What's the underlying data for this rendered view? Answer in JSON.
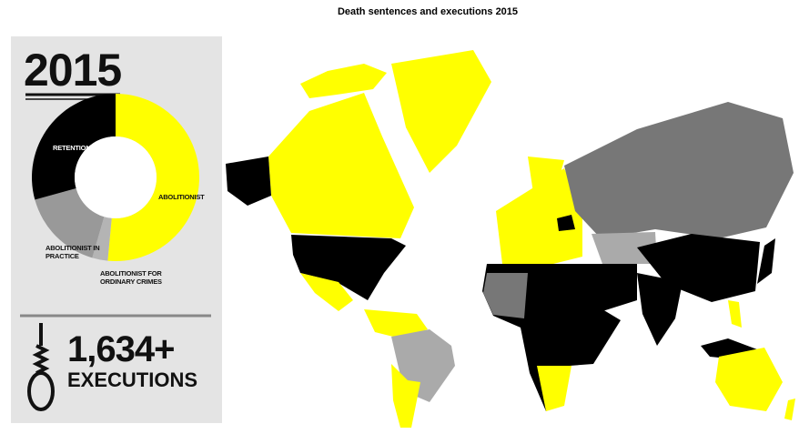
{
  "title": "Death sentences and executions 2015",
  "panel": {
    "year": "2015",
    "executions": "1,634+",
    "executions_label": "EXECUTIONS"
  },
  "chart_data": {
    "type": "pie",
    "donut": true,
    "categories": [
      "ABOLITIONIST",
      "ABOLITIONIST FOR ORDINARY CRIMES",
      "ABOLITIONIST IN PRACTICE",
      "RETENTIONIST"
    ],
    "values": [
      51.5,
      3,
      16.2,
      29.3
    ],
    "colors": [
      "#ffff00",
      "#b4b4b4",
      "#999999",
      "#000000"
    ]
  }
}
